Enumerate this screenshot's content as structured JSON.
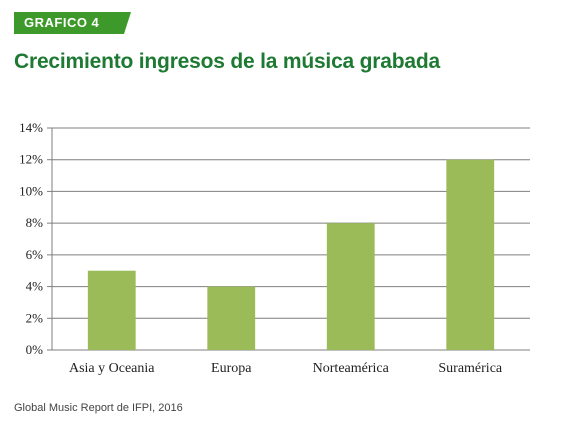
{
  "badge": "GRAFICO 4",
  "title": "Crecimiento ingresos de la música grabada",
  "source": "Global Music Report de IFPI, 2016",
  "colors": {
    "accent": "#3d9a2a",
    "title": "#1e7a33",
    "bar": "#9bbb59",
    "grid": "#7f7f7f"
  },
  "chart_data": {
    "type": "bar",
    "categories": [
      "Asia y Oceania",
      "Europa",
      "Norteamérica",
      "Suramérica"
    ],
    "values": [
      5,
      4,
      8,
      12
    ],
    "ylim": [
      0,
      14
    ],
    "yticks": [
      0,
      2,
      4,
      6,
      8,
      10,
      12,
      14
    ],
    "ytick_labels": [
      "0%",
      "2%",
      "4%",
      "6%",
      "8%",
      "10%",
      "12%",
      "14%"
    ],
    "grid": true,
    "legend": "none"
  }
}
